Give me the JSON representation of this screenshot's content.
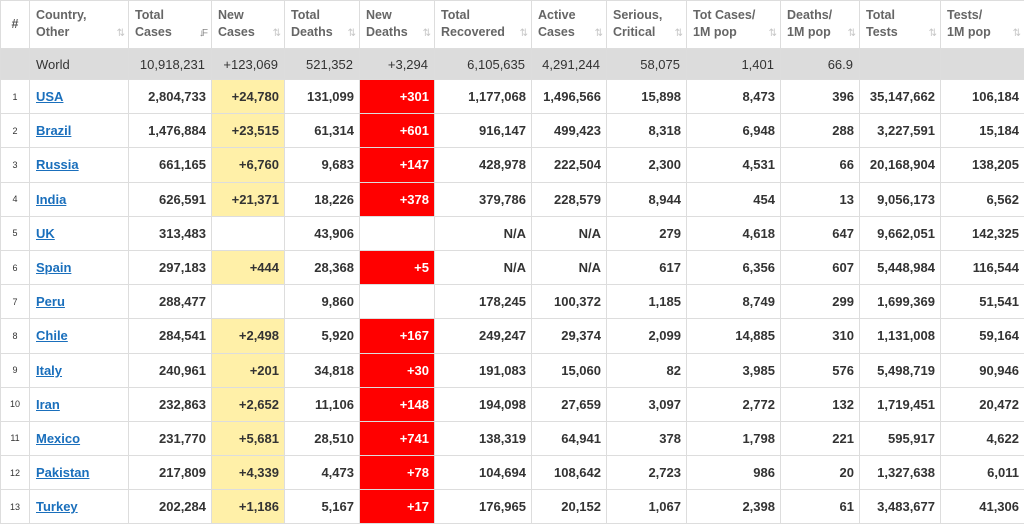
{
  "colors": {
    "new_cases_highlight": "#fff0a8",
    "new_deaths_highlight": "#ff0000",
    "world_row_bg": "#dcdcdc",
    "link": "#1a6fbc"
  },
  "headers": [
    {
      "line1": "#",
      "line2": "",
      "sort": ""
    },
    {
      "line1": "Country,",
      "line2": "Other",
      "sort": "⇅"
    },
    {
      "line1": "Total",
      "line2": "Cases",
      "sort": "↓F"
    },
    {
      "line1": "New",
      "line2": "Cases",
      "sort": "⇅"
    },
    {
      "line1": "Total",
      "line2": "Deaths",
      "sort": "⇅"
    },
    {
      "line1": "New",
      "line2": "Deaths",
      "sort": "⇅"
    },
    {
      "line1": "Total",
      "line2": "Recovered",
      "sort": "⇅"
    },
    {
      "line1": "Active",
      "line2": "Cases",
      "sort": "⇅"
    },
    {
      "line1": "Serious,",
      "line2": "Critical",
      "sort": "⇅"
    },
    {
      "line1": "Tot Cases/",
      "line2": "1M pop",
      "sort": "⇅"
    },
    {
      "line1": "Deaths/",
      "line2": "1M pop",
      "sort": "⇅"
    },
    {
      "line1": "Total",
      "line2": "Tests",
      "sort": "⇅"
    },
    {
      "line1": "Tests/",
      "line2": "1M pop",
      "sort": "⇅"
    }
  ],
  "world": [
    "",
    "World",
    "10,918,231",
    "+123,069",
    "521,352",
    "+3,294",
    "6,105,635",
    "4,291,244",
    "58,075",
    "1,401",
    "66.9",
    "",
    ""
  ],
  "rows": [
    [
      "1",
      "USA",
      "2,804,733",
      "+24,780",
      "131,099",
      "+301",
      "1,177,068",
      "1,496,566",
      "15,898",
      "8,473",
      "396",
      "35,147,662",
      "106,184"
    ],
    [
      "2",
      "Brazil",
      "1,476,884",
      "+23,515",
      "61,314",
      "+601",
      "916,147",
      "499,423",
      "8,318",
      "6,948",
      "288",
      "3,227,591",
      "15,184"
    ],
    [
      "3",
      "Russia",
      "661,165",
      "+6,760",
      "9,683",
      "+147",
      "428,978",
      "222,504",
      "2,300",
      "4,531",
      "66",
      "20,168,904",
      "138,205"
    ],
    [
      "4",
      "India",
      "626,591",
      "+21,371",
      "18,226",
      "+378",
      "379,786",
      "228,579",
      "8,944",
      "454",
      "13",
      "9,056,173",
      "6,562"
    ],
    [
      "5",
      "UK",
      "313,483",
      "",
      "43,906",
      "",
      "N/A",
      "N/A",
      "279",
      "4,618",
      "647",
      "9,662,051",
      "142,325"
    ],
    [
      "6",
      "Spain",
      "297,183",
      "+444",
      "28,368",
      "+5",
      "N/A",
      "N/A",
      "617",
      "6,356",
      "607",
      "5,448,984",
      "116,544"
    ],
    [
      "7",
      "Peru",
      "288,477",
      "",
      "9,860",
      "",
      "178,245",
      "100,372",
      "1,185",
      "8,749",
      "299",
      "1,699,369",
      "51,541"
    ],
    [
      "8",
      "Chile",
      "284,541",
      "+2,498",
      "5,920",
      "+167",
      "249,247",
      "29,374",
      "2,099",
      "14,885",
      "310",
      "1,131,008",
      "59,164"
    ],
    [
      "9",
      "Italy",
      "240,961",
      "+201",
      "34,818",
      "+30",
      "191,083",
      "15,060",
      "82",
      "3,985",
      "576",
      "5,498,719",
      "90,946"
    ],
    [
      "10",
      "Iran",
      "232,863",
      "+2,652",
      "11,106",
      "+148",
      "194,098",
      "27,659",
      "3,097",
      "2,772",
      "132",
      "1,719,451",
      "20,472"
    ],
    [
      "11",
      "Mexico",
      "231,770",
      "+5,681",
      "28,510",
      "+741",
      "138,319",
      "64,941",
      "378",
      "1,798",
      "221",
      "595,917",
      "4,622"
    ],
    [
      "12",
      "Pakistan",
      "217,809",
      "+4,339",
      "4,473",
      "+78",
      "104,694",
      "108,642",
      "2,723",
      "986",
      "20",
      "1,327,638",
      "6,011"
    ],
    [
      "13",
      "Turkey",
      "202,284",
      "+1,186",
      "5,167",
      "+17",
      "176,965",
      "20,152",
      "1,067",
      "2,398",
      "61",
      "3,483,677",
      "41,306"
    ]
  ]
}
